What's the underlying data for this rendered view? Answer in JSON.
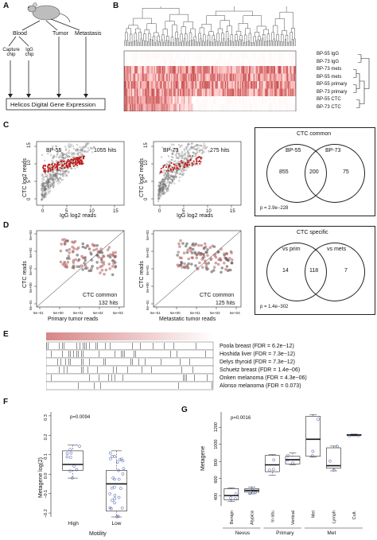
{
  "panels": {
    "A": "A",
    "B": "B",
    "C": "C",
    "D": "D",
    "E": "E",
    "F": "F",
    "G": "G"
  },
  "panel_a": {
    "blood": "Blood",
    "tumor": "Tumor",
    "metastasis": "Metastasis",
    "capture_chip": "Capture chip",
    "igg_chip": "IgG chip",
    "helicos": "Helicos Digital Gene Expression"
  },
  "panel_b": {
    "rows": [
      "BP-55 IgG",
      "BP-73 IgG",
      "BP-73 mets",
      "BP-55 mets",
      "BP-55 primary",
      "BP-73 primary",
      "BP-55 CTC",
      "BP-73 CTC"
    ]
  },
  "panel_c": {
    "scatter1": {
      "sample": "BP-55",
      "hits": "1055 hits",
      "ylabel": "CTC log2 reads",
      "xlabel": "IgG log2 reads",
      "xticks": [
        "0",
        "5",
        "10",
        "15"
      ],
      "yticks": [
        "0",
        "5",
        "10",
        "15"
      ]
    },
    "scatter2": {
      "sample": "BP-73",
      "hits": "275 hits",
      "ylabel": "CTC log2 reads",
      "xlabel": "IgG log2 reads",
      "xticks": [
        "0",
        "5",
        "10",
        "15"
      ],
      "yticks": [
        "0",
        "5",
        "10",
        "15"
      ]
    },
    "venn": {
      "title": "CTC common",
      "left_name": "BP-55",
      "right_name": "BP-73",
      "left": "855",
      "center": "200",
      "right": "75",
      "p": "p = 2.9e−228"
    }
  },
  "panel_d": {
    "scatter1": {
      "note": "CTC common",
      "hits": "132 hits",
      "ylabel": "CTC reads",
      "xlabel": "Primary tumor reads",
      "ticks": [
        "5e−01",
        "5e+00",
        "5e+01",
        "5e+02",
        "5e+03"
      ]
    },
    "scatter2": {
      "note": "CTC common",
      "hits": "125 hits",
      "ylabel": "CTC reads",
      "xlabel": "Metastatic tumor reads",
      "ticks": [
        "5e−01",
        "5e+00",
        "5e+01",
        "5e+02",
        "5e+03"
      ]
    },
    "venn": {
      "title": "CTC specific",
      "left_name": "vs prim",
      "right_name": "vs mets",
      "left": "14",
      "center": "118",
      "right": "7",
      "p": "p = 1.4e−302"
    }
  },
  "panel_e": {
    "rows": [
      "Poola breast (FDR = 6.2e−12)",
      "Hoshida liver (FDR = 7.3e−12)",
      "Delys thyroid (FDR = 7.3e−12)",
      "Schuetz breast (FDR = 1.4e−06)",
      "Onken melanoma (FDR = 4.3e−06)",
      "Alonso melanoma (FDR = 0.073)"
    ]
  },
  "panel_f": {
    "pval": "p=0.0094",
    "ylabel": "Metagene log(2)",
    "xlabel": "Motility",
    "yticks": [
      "0.3",
      "0.2",
      "0.1",
      "0.0",
      "−0.1",
      "−0.2"
    ],
    "chart_data": {
      "type": "box",
      "categories": [
        "High",
        "Low"
      ],
      "ylim": [
        -0.22,
        0.32
      ],
      "boxes": [
        {
          "min": -0.02,
          "q1": 0.02,
          "median": 0.05,
          "q3": 0.12,
          "max": 0.15
        },
        {
          "min": -0.22,
          "q1": -0.19,
          "median": -0.05,
          "q3": 0.02,
          "max": 0.12
        }
      ]
    }
  },
  "panel_g": {
    "pval": "p=0.0016",
    "ylabel": "Metagene",
    "yticks": [
      "400",
      "600",
      "800",
      "1000",
      "1200"
    ],
    "groups": [
      "Nevus",
      "Primary",
      "Met"
    ],
    "chart_data": {
      "type": "box",
      "categories": [
        "Benign",
        "Atypica",
        "In situ",
        "Vertical",
        "Met",
        "Lymph",
        "Cult."
      ],
      "ylim": [
        280,
        1380
      ],
      "boxes": [
        {
          "min": 330,
          "q1": 350,
          "median": 400,
          "q3": 480,
          "max": 490
        },
        {
          "min": 420,
          "q1": 440,
          "median": 460,
          "q3": 480,
          "max": 500
        },
        {
          "min": 640,
          "q1": 680,
          "median": 760,
          "q3": 870,
          "max": 880
        },
        {
          "min": 760,
          "q1": 770,
          "median": 820,
          "q3": 860,
          "max": 900
        },
        {
          "min": 850,
          "q1": 860,
          "median": 1060,
          "q3": 1330,
          "max": 1350
        },
        {
          "min": 690,
          "q1": 720,
          "median": 750,
          "q3": 960,
          "max": 980
        },
        {
          "min": 1100,
          "q1": 1105,
          "median": 1110,
          "q3": 1115,
          "max": 1120
        }
      ]
    }
  }
}
